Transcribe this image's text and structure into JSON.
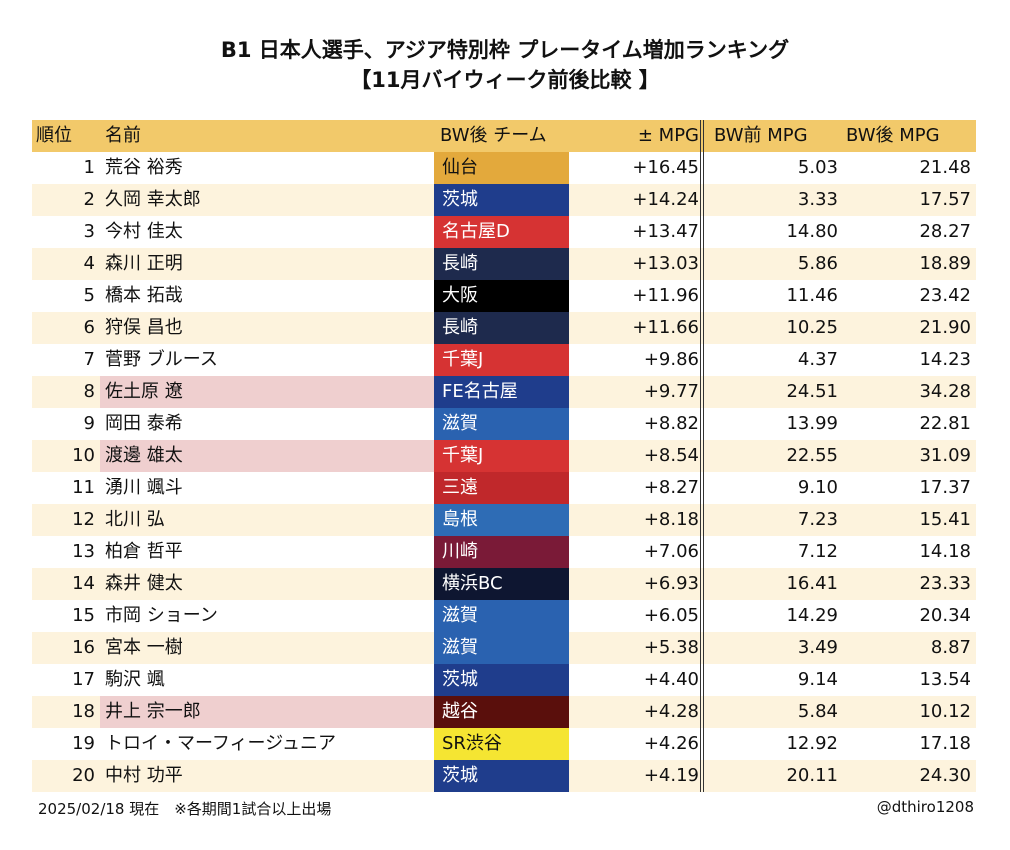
{
  "title_line1": "B1 日本人選手、アジア特別枠 プレータイム増加ランキング",
  "title_line2": "【11月バイウィーク前後比較 】",
  "colors": {
    "header_bg": "#f2c96a",
    "row_alt_bg": "#fdf3dd",
    "name_highlight_bg": "#efcfcf"
  },
  "chart_data": {
    "type": "table",
    "headers": {
      "rank": "順位",
      "name": "名前",
      "team": "BW後 チーム",
      "diff": "± MPG",
      "before": "BW前 MPG",
      "after": "BW後 MPG"
    },
    "rows": [
      {
        "rank": "1",
        "name": "荒谷 裕秀",
        "team": "仙台",
        "team_color": "#e3a93c",
        "team_text": "#111111",
        "diff": "+16.45",
        "before": "5.03",
        "after": "21.48",
        "highlight": false
      },
      {
        "rank": "2",
        "name": "久岡 幸太郎",
        "team": "茨城",
        "team_color": "#1f3d8c",
        "team_text": "#ffffff",
        "diff": "+14.24",
        "before": "3.33",
        "after": "17.57",
        "highlight": false
      },
      {
        "rank": "3",
        "name": "今村 佳太",
        "team": "名古屋D",
        "team_color": "#d63333",
        "team_text": "#ffffff",
        "diff": "+13.47",
        "before": "14.80",
        "after": "28.27",
        "highlight": false
      },
      {
        "rank": "4",
        "name": "森川 正明",
        "team": "長崎",
        "team_color": "#1e2a4d",
        "team_text": "#ffffff",
        "diff": "+13.03",
        "before": "5.86",
        "after": "18.89",
        "highlight": false
      },
      {
        "rank": "5",
        "name": "橋本 拓哉",
        "team": "大阪",
        "team_color": "#000000",
        "team_text": "#ffffff",
        "diff": "+11.96",
        "before": "11.46",
        "after": "23.42",
        "highlight": false
      },
      {
        "rank": "6",
        "name": "狩俣 昌也",
        "team": "長崎",
        "team_color": "#1e2a4d",
        "team_text": "#ffffff",
        "diff": "+11.66",
        "before": "10.25",
        "after": "21.90",
        "highlight": false
      },
      {
        "rank": "7",
        "name": "菅野 ブルース",
        "team": "千葉J",
        "team_color": "#d63333",
        "team_text": "#ffffff",
        "diff": "+9.86",
        "before": "4.37",
        "after": "14.23",
        "highlight": false
      },
      {
        "rank": "8",
        "name": "佐土原 遼",
        "team": "FE名古屋",
        "team_color": "#1f3d8c",
        "team_text": "#ffffff",
        "diff": "+9.77",
        "before": "24.51",
        "after": "34.28",
        "highlight": true
      },
      {
        "rank": "9",
        "name": "岡田 泰希",
        "team": "滋賀",
        "team_color": "#2a62b0",
        "team_text": "#ffffff",
        "diff": "+8.82",
        "before": "13.99",
        "after": "22.81",
        "highlight": false
      },
      {
        "rank": "10",
        "name": "渡邊 雄太",
        "team": "千葉J",
        "team_color": "#d63333",
        "team_text": "#ffffff",
        "diff": "+8.54",
        "before": "22.55",
        "after": "31.09",
        "highlight": true
      },
      {
        "rank": "11",
        "name": "湧川 颯斗",
        "team": "三遠",
        "team_color": "#c0282b",
        "team_text": "#ffffff",
        "diff": "+8.27",
        "before": "9.10",
        "after": "17.37",
        "highlight": false
      },
      {
        "rank": "12",
        "name": "北川 弘",
        "team": "島根",
        "team_color": "#2e6cb5",
        "team_text": "#ffffff",
        "diff": "+8.18",
        "before": "7.23",
        "after": "15.41",
        "highlight": false
      },
      {
        "rank": "13",
        "name": "柏倉 哲平",
        "team": "川崎",
        "team_color": "#7a1a37",
        "team_text": "#ffffff",
        "diff": "+7.06",
        "before": "7.12",
        "after": "14.18",
        "highlight": false
      },
      {
        "rank": "14",
        "name": "森井 健太",
        "team": "横浜BC",
        "team_color": "#0e1631",
        "team_text": "#ffffff",
        "diff": "+6.93",
        "before": "16.41",
        "after": "23.33",
        "highlight": false
      },
      {
        "rank": "15",
        "name": "市岡 ショーン",
        "team": "滋賀",
        "team_color": "#2a62b0",
        "team_text": "#ffffff",
        "diff": "+6.05",
        "before": "14.29",
        "after": "20.34",
        "highlight": false
      },
      {
        "rank": "16",
        "name": "宮本 一樹",
        "team": "滋賀",
        "team_color": "#2a62b0",
        "team_text": "#ffffff",
        "diff": "+5.38",
        "before": "3.49",
        "after": "8.87",
        "highlight": false
      },
      {
        "rank": "17",
        "name": "駒沢 颯",
        "team": "茨城",
        "team_color": "#1f3d8c",
        "team_text": "#ffffff",
        "diff": "+4.40",
        "before": "9.14",
        "after": "13.54",
        "highlight": false
      },
      {
        "rank": "18",
        "name": "井上 宗一郎",
        "team": "越谷",
        "team_color": "#5a0f0c",
        "team_text": "#ffffff",
        "diff": "+4.28",
        "before": "5.84",
        "after": "10.12",
        "highlight": true
      },
      {
        "rank": "19",
        "name": "トロイ・マーフィージュニア",
        "team": "SR渋谷",
        "team_color": "#f5e532",
        "team_text": "#111111",
        "diff": "+4.26",
        "before": "12.92",
        "after": "17.18",
        "highlight": false
      },
      {
        "rank": "20",
        "name": "中村 功平",
        "team": "茨城",
        "team_color": "#1f3d8c",
        "team_text": "#ffffff",
        "diff": "+4.19",
        "before": "20.11",
        "after": "24.30",
        "highlight": false
      }
    ]
  },
  "footer_left": "2025/02/18 現在　※各期間1試合以上出場",
  "footer_right": "@dthiro1208"
}
